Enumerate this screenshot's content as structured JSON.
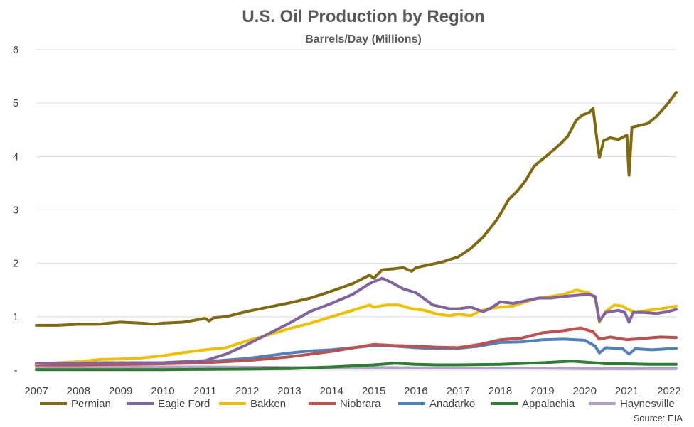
{
  "chart_data": {
    "type": "line",
    "title": "U.S. Oil Production by Region",
    "subtitle": "Barrels/Day (Millions)",
    "source": "Source: EIA",
    "xlabel": "",
    "ylabel": "",
    "x_tick_labels": [
      "2007",
      "2008",
      "2009",
      "2010",
      "2011",
      "2012",
      "2013",
      "2014",
      "2015",
      "2016",
      "2017",
      "2018",
      "2019",
      "2020",
      "2021",
      "2022"
    ],
    "y_tick_labels": [
      "-",
      "1",
      "2",
      "3",
      "4",
      "5",
      "6"
    ],
    "xlim": [
      2007.0,
      2022.17
    ],
    "ylim": [
      0,
      6
    ],
    "grid": true,
    "legend_position": "bottom",
    "series": [
      {
        "name": "Permian",
        "color": "#7F6A0F",
        "points": [
          [
            2007.0,
            0.84
          ],
          [
            2007.5,
            0.84
          ],
          [
            2008.0,
            0.86
          ],
          [
            2008.5,
            0.86
          ],
          [
            2008.7,
            0.88
          ],
          [
            2009.0,
            0.9
          ],
          [
            2009.5,
            0.88
          ],
          [
            2009.8,
            0.86
          ],
          [
            2010.0,
            0.88
          ],
          [
            2010.5,
            0.9
          ],
          [
            2011.0,
            0.97
          ],
          [
            2011.1,
            0.92
          ],
          [
            2011.2,
            0.98
          ],
          [
            2011.5,
            1.0
          ],
          [
            2012.0,
            1.1
          ],
          [
            2012.5,
            1.18
          ],
          [
            2013.0,
            1.26
          ],
          [
            2013.5,
            1.35
          ],
          [
            2014.0,
            1.48
          ],
          [
            2014.5,
            1.62
          ],
          [
            2014.9,
            1.78
          ],
          [
            2015.0,
            1.72
          ],
          [
            2015.2,
            1.88
          ],
          [
            2015.5,
            1.9
          ],
          [
            2015.7,
            1.92
          ],
          [
            2015.9,
            1.85
          ],
          [
            2016.0,
            1.92
          ],
          [
            2016.3,
            1.97
          ],
          [
            2016.6,
            2.02
          ],
          [
            2017.0,
            2.12
          ],
          [
            2017.3,
            2.28
          ],
          [
            2017.6,
            2.5
          ],
          [
            2017.9,
            2.8
          ],
          [
            2018.0,
            2.92
          ],
          [
            2018.2,
            3.2
          ],
          [
            2018.4,
            3.35
          ],
          [
            2018.6,
            3.55
          ],
          [
            2018.8,
            3.82
          ],
          [
            2019.0,
            3.95
          ],
          [
            2019.2,
            4.08
          ],
          [
            2019.4,
            4.22
          ],
          [
            2019.6,
            4.38
          ],
          [
            2019.8,
            4.68
          ],
          [
            2019.95,
            4.78
          ],
          [
            2020.1,
            4.82
          ],
          [
            2020.2,
            4.9
          ],
          [
            2020.3,
            4.25
          ],
          [
            2020.35,
            3.98
          ],
          [
            2020.45,
            4.3
          ],
          [
            2020.6,
            4.35
          ],
          [
            2020.8,
            4.32
          ],
          [
            2020.95,
            4.38
          ],
          [
            2021.0,
            4.4
          ],
          [
            2021.05,
            3.65
          ],
          [
            2021.12,
            4.55
          ],
          [
            2021.3,
            4.58
          ],
          [
            2021.5,
            4.62
          ],
          [
            2021.7,
            4.75
          ],
          [
            2021.85,
            4.88
          ],
          [
            2022.0,
            5.02
          ],
          [
            2022.17,
            5.2
          ]
        ]
      },
      {
        "name": "Eagle Ford",
        "color": "#8064A2",
        "points": [
          [
            2007.0,
            0.13
          ],
          [
            2008.0,
            0.13
          ],
          [
            2009.0,
            0.14
          ],
          [
            2010.0,
            0.14
          ],
          [
            2011.0,
            0.18
          ],
          [
            2011.5,
            0.3
          ],
          [
            2012.0,
            0.48
          ],
          [
            2012.5,
            0.68
          ],
          [
            2013.0,
            0.88
          ],
          [
            2013.5,
            1.1
          ],
          [
            2014.0,
            1.25
          ],
          [
            2014.5,
            1.42
          ],
          [
            2014.9,
            1.62
          ],
          [
            2015.2,
            1.72
          ],
          [
            2015.4,
            1.65
          ],
          [
            2015.7,
            1.52
          ],
          [
            2016.0,
            1.45
          ],
          [
            2016.4,
            1.22
          ],
          [
            2016.8,
            1.15
          ],
          [
            2017.0,
            1.15
          ],
          [
            2017.3,
            1.18
          ],
          [
            2017.5,
            1.12
          ],
          [
            2017.6,
            1.1
          ],
          [
            2017.75,
            1.15
          ],
          [
            2018.0,
            1.28
          ],
          [
            2018.3,
            1.25
          ],
          [
            2018.6,
            1.3
          ],
          [
            2018.9,
            1.35
          ],
          [
            2019.2,
            1.35
          ],
          [
            2019.5,
            1.38
          ],
          [
            2019.8,
            1.4
          ],
          [
            2020.1,
            1.42
          ],
          [
            2020.25,
            1.38
          ],
          [
            2020.35,
            0.92
          ],
          [
            2020.5,
            1.08
          ],
          [
            2020.8,
            1.12
          ],
          [
            2020.95,
            1.08
          ],
          [
            2021.05,
            0.9
          ],
          [
            2021.15,
            1.08
          ],
          [
            2021.4,
            1.08
          ],
          [
            2021.7,
            1.06
          ],
          [
            2022.0,
            1.1
          ],
          [
            2022.17,
            1.14
          ]
        ]
      },
      {
        "name": "Bakken",
        "color": "#F0C000",
        "points": [
          [
            2007.0,
            0.12
          ],
          [
            2007.5,
            0.14
          ],
          [
            2008.0,
            0.16
          ],
          [
            2008.5,
            0.2
          ],
          [
            2009.0,
            0.21
          ],
          [
            2009.5,
            0.23
          ],
          [
            2010.0,
            0.27
          ],
          [
            2010.5,
            0.33
          ],
          [
            2011.0,
            0.38
          ],
          [
            2011.5,
            0.42
          ],
          [
            2012.0,
            0.55
          ],
          [
            2012.5,
            0.66
          ],
          [
            2013.0,
            0.78
          ],
          [
            2013.5,
            0.88
          ],
          [
            2014.0,
            1.0
          ],
          [
            2014.5,
            1.12
          ],
          [
            2014.9,
            1.22
          ],
          [
            2015.0,
            1.18
          ],
          [
            2015.3,
            1.22
          ],
          [
            2015.6,
            1.22
          ],
          [
            2015.9,
            1.15
          ],
          [
            2016.2,
            1.12
          ],
          [
            2016.5,
            1.05
          ],
          [
            2016.8,
            1.02
          ],
          [
            2017.0,
            1.05
          ],
          [
            2017.3,
            1.02
          ],
          [
            2017.5,
            1.1
          ],
          [
            2017.7,
            1.15
          ],
          [
            2018.0,
            1.18
          ],
          [
            2018.3,
            1.2
          ],
          [
            2018.6,
            1.28
          ],
          [
            2018.9,
            1.35
          ],
          [
            2019.2,
            1.38
          ],
          [
            2019.5,
            1.42
          ],
          [
            2019.8,
            1.5
          ],
          [
            2020.1,
            1.45
          ],
          [
            2020.25,
            1.35
          ],
          [
            2020.35,
            0.9
          ],
          [
            2020.5,
            1.1
          ],
          [
            2020.7,
            1.22
          ],
          [
            2020.9,
            1.2
          ],
          [
            2021.0,
            1.15
          ],
          [
            2021.2,
            1.08
          ],
          [
            2021.5,
            1.12
          ],
          [
            2021.8,
            1.15
          ],
          [
            2022.17,
            1.2
          ]
        ]
      },
      {
        "name": "Niobrara",
        "color": "#C0504D",
        "points": [
          [
            2007.0,
            0.1
          ],
          [
            2008.0,
            0.1
          ],
          [
            2009.0,
            0.11
          ],
          [
            2010.0,
            0.12
          ],
          [
            2011.0,
            0.14
          ],
          [
            2012.0,
            0.18
          ],
          [
            2013.0,
            0.25
          ],
          [
            2014.0,
            0.35
          ],
          [
            2015.0,
            0.48
          ],
          [
            2015.5,
            0.46
          ],
          [
            2016.0,
            0.45
          ],
          [
            2016.5,
            0.43
          ],
          [
            2017.0,
            0.42
          ],
          [
            2017.5,
            0.48
          ],
          [
            2018.0,
            0.57
          ],
          [
            2018.5,
            0.6
          ],
          [
            2019.0,
            0.7
          ],
          [
            2019.5,
            0.74
          ],
          [
            2019.9,
            0.79
          ],
          [
            2020.2,
            0.72
          ],
          [
            2020.35,
            0.58
          ],
          [
            2020.6,
            0.62
          ],
          [
            2021.0,
            0.57
          ],
          [
            2021.5,
            0.6
          ],
          [
            2021.8,
            0.62
          ],
          [
            2022.17,
            0.61
          ]
        ]
      },
      {
        "name": "Anadarko",
        "color": "#4F81BD",
        "points": [
          [
            2007.0,
            0.13
          ],
          [
            2008.0,
            0.14
          ],
          [
            2009.0,
            0.14
          ],
          [
            2010.0,
            0.14
          ],
          [
            2011.0,
            0.16
          ],
          [
            2012.0,
            0.22
          ],
          [
            2012.5,
            0.27
          ],
          [
            2013.0,
            0.32
          ],
          [
            2013.5,
            0.36
          ],
          [
            2014.0,
            0.38
          ],
          [
            2014.5,
            0.42
          ],
          [
            2015.0,
            0.46
          ],
          [
            2015.5,
            0.45
          ],
          [
            2016.0,
            0.42
          ],
          [
            2016.5,
            0.4
          ],
          [
            2017.0,
            0.41
          ],
          [
            2017.5,
            0.45
          ],
          [
            2018.0,
            0.52
          ],
          [
            2018.5,
            0.53
          ],
          [
            2019.0,
            0.57
          ],
          [
            2019.5,
            0.58
          ],
          [
            2020.0,
            0.56
          ],
          [
            2020.25,
            0.45
          ],
          [
            2020.35,
            0.32
          ],
          [
            2020.5,
            0.42
          ],
          [
            2020.9,
            0.4
          ],
          [
            2021.05,
            0.3
          ],
          [
            2021.2,
            0.4
          ],
          [
            2021.6,
            0.38
          ],
          [
            2022.0,
            0.4
          ],
          [
            2022.17,
            0.41
          ]
        ]
      },
      {
        "name": "Appalachia",
        "color": "#2E7D32",
        "points": [
          [
            2007.0,
            0.01
          ],
          [
            2010.0,
            0.01
          ],
          [
            2012.0,
            0.02
          ],
          [
            2013.0,
            0.03
          ],
          [
            2014.0,
            0.06
          ],
          [
            2015.0,
            0.1
          ],
          [
            2015.5,
            0.13
          ],
          [
            2016.0,
            0.11
          ],
          [
            2016.5,
            0.1
          ],
          [
            2017.0,
            0.1
          ],
          [
            2018.0,
            0.11
          ],
          [
            2019.0,
            0.14
          ],
          [
            2019.7,
            0.17
          ],
          [
            2020.2,
            0.14
          ],
          [
            2020.5,
            0.12
          ],
          [
            2021.0,
            0.12
          ],
          [
            2021.5,
            0.11
          ],
          [
            2022.17,
            0.11
          ]
        ]
      },
      {
        "name": "Haynesville",
        "color": "#B3A2C7",
        "points": [
          [
            2007.0,
            0.06
          ],
          [
            2009.0,
            0.06
          ],
          [
            2011.0,
            0.06
          ],
          [
            2013.0,
            0.05
          ],
          [
            2015.0,
            0.05
          ],
          [
            2017.0,
            0.04
          ],
          [
            2019.0,
            0.04
          ],
          [
            2020.35,
            0.03
          ],
          [
            2021.0,
            0.03
          ],
          [
            2022.17,
            0.03
          ]
        ]
      }
    ]
  }
}
